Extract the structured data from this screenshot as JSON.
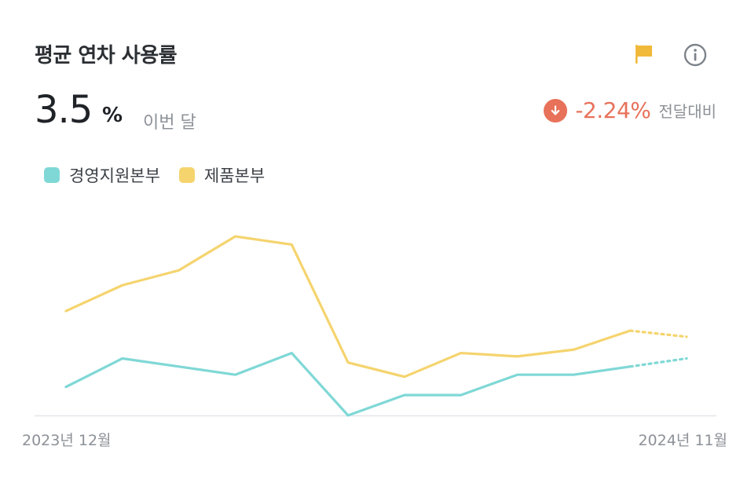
{
  "header": {
    "title": "평균 연차 사용률",
    "flag_icon": "flag-icon",
    "info_icon": "info-icon"
  },
  "metric": {
    "value": "3.5",
    "unit": "%",
    "period": "이번 달"
  },
  "change": {
    "icon": "arrow-down-icon",
    "value": "-2.24%",
    "label": "전달대비"
  },
  "colors": {
    "series_1": "#7fd8d6",
    "series_2": "#f5d46e",
    "negative": "#e8715a",
    "flag": "#f0b93a"
  },
  "chart_data": {
    "type": "line",
    "x": [
      "2023-12",
      "2024-01",
      "2024-02",
      "2024-03",
      "2024-04",
      "2024-05",
      "2024-06",
      "2024-07",
      "2024-08",
      "2024-09",
      "2024-10",
      "2024-11"
    ],
    "x_tick_labels": [
      "2023년 12월",
      "2024년 11월"
    ],
    "series": [
      {
        "name": "경영지원본부",
        "values": [
          4.2,
          8.4,
          7.2,
          6.0,
          9.2,
          0.0,
          3.0,
          3.0,
          6.0,
          6.0,
          7.2,
          8.4
        ],
        "dashed_from_index": 10
      },
      {
        "name": "제품본부",
        "values": [
          15.4,
          19.2,
          21.4,
          26.4,
          25.2,
          7.8,
          5.7,
          9.2,
          8.7,
          9.7,
          12.5,
          11.6
        ],
        "dashed_from_index": 10
      }
    ],
    "ylim": [
      0,
      30
    ],
    "grid": false,
    "legend": "top-left"
  }
}
